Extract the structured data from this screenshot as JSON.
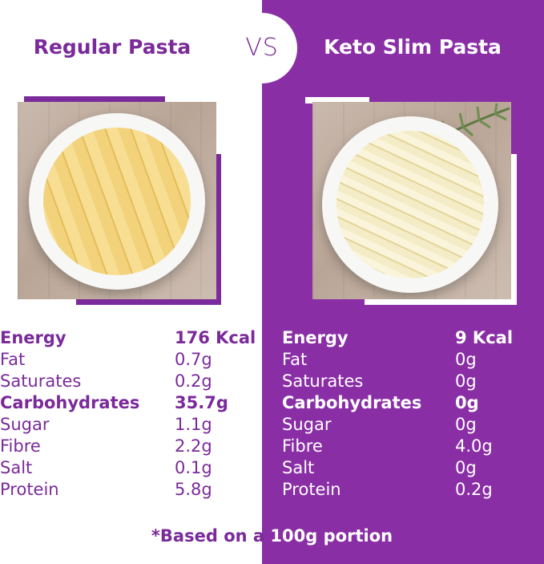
{
  "vs_label": "VS",
  "regular": {
    "title": "Regular Pasta",
    "image": "rigatoni-bowl",
    "nutrition": [
      {
        "label": "Energy",
        "value": "176 Kcal",
        "bold": true
      },
      {
        "label": "Fat",
        "value": "0.7g",
        "bold": false
      },
      {
        "label": "Saturates",
        "value": "0.2g",
        "bold": false
      },
      {
        "label": "Carbohydrates",
        "value": "35.7g",
        "bold": true
      },
      {
        "label": "Sugar",
        "value": "1.1g",
        "bold": false
      },
      {
        "label": "Fibre",
        "value": "2.2g",
        "bold": false
      },
      {
        "label": "Salt",
        "value": "0.1g",
        "bold": false
      },
      {
        "label": "Protein",
        "value": "5.8g",
        "bold": false
      }
    ]
  },
  "keto": {
    "title": "Keto Slim Pasta",
    "image": "konjac-pasta-bowl",
    "nutrition": [
      {
        "label": "Energy",
        "value": "9 Kcal",
        "bold": true
      },
      {
        "label": "Fat",
        "value": "0g",
        "bold": false
      },
      {
        "label": "Saturates",
        "value": "0g",
        "bold": false
      },
      {
        "label": "Carbohydrates",
        "value": "0g",
        "bold": true
      },
      {
        "label": "Sugar",
        "value": "0g",
        "bold": false
      },
      {
        "label": "Fibre",
        "value": "4.0g",
        "bold": false
      },
      {
        "label": "Salt",
        "value": "0g",
        "bold": false
      },
      {
        "label": "Protein",
        "value": "0.2g",
        "bold": false
      }
    ]
  },
  "footnote": "*Based on a 100g portion",
  "colors": {
    "purple": "#8a2ea6",
    "purple_text": "#7a2a9a",
    "white": "#ffffff"
  }
}
